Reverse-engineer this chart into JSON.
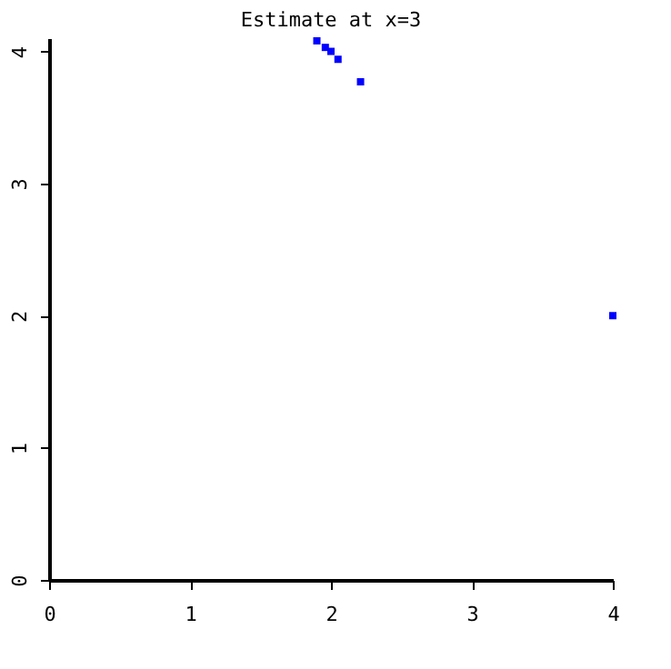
{
  "chart_data": {
    "type": "scatter",
    "title": "Estimate at x=3",
    "series": [
      {
        "color": "#0000ff",
        "x": [
          1.9,
          1.96,
          2.0,
          2.05,
          2.21,
          4.0
        ],
        "values": [
          4.08,
          4.03,
          4.0,
          3.94,
          3.77,
          2.0
        ]
      }
    ],
    "xlim": [
      0,
      4
    ],
    "xticks": [
      0,
      1,
      2,
      3,
      4
    ],
    "ylim": [
      0,
      4.1
    ],
    "yticks": [
      0,
      1,
      2,
      3,
      4
    ],
    "grid": false,
    "marker": "square"
  }
}
